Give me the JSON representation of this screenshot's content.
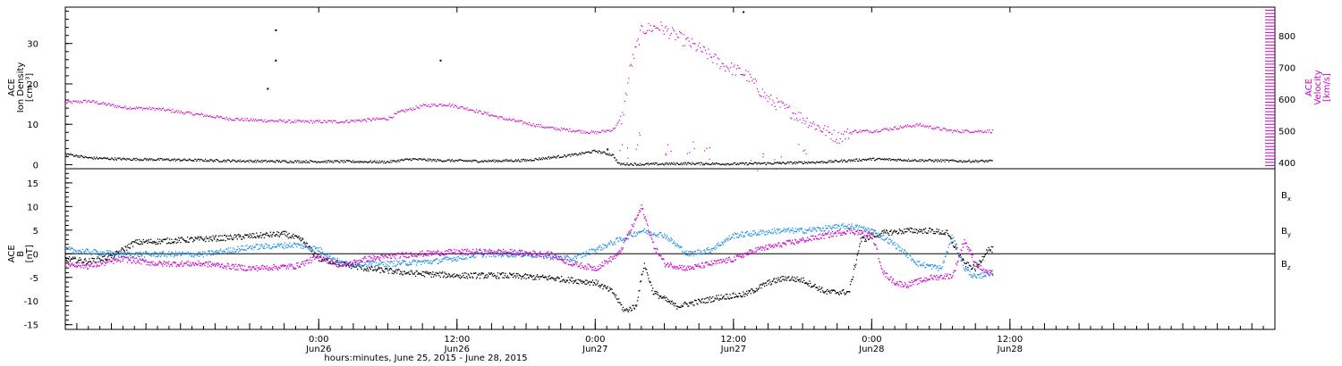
{
  "colors": {
    "black": "#000000",
    "magenta": "#cc00cc",
    "blue": "#1e8fe6",
    "background": "#ffffff"
  },
  "footer": {
    "xlabel": "hours:minutes, June 25, 2015 - June 28, 2015"
  },
  "chart_data": [
    {
      "type": "scatter",
      "panel": "top",
      "xlim_hours": [
        -22,
        83
      ],
      "x_unit": "hours since 0:00 Jun26",
      "x_ticks": [
        {
          "hours": 0,
          "time": "0:00",
          "date": "Jun26"
        },
        {
          "hours": 12,
          "time": "12:00",
          "date": "Jun26"
        },
        {
          "hours": 24,
          "time": "0:00",
          "date": "Jun27"
        },
        {
          "hours": 36,
          "time": "12:00",
          "date": "Jun27"
        },
        {
          "hours": 48,
          "time": "0:00",
          "date": "Jun28"
        },
        {
          "hours": 60,
          "time": "12:00",
          "date": "Jun28"
        }
      ],
      "left_axis": {
        "label_lines": [
          "ACE",
          "Ion Density",
          "[cm⁻³]"
        ],
        "ylim": [
          -1,
          39
        ],
        "ticks": [
          0,
          10,
          20,
          30
        ]
      },
      "right_axis": {
        "label_lines": [
          "ACE",
          "Velocity",
          "[km/s]"
        ],
        "ylim": [
          380,
          890
        ],
        "ticks": [
          400,
          500,
          600,
          700,
          800
        ],
        "color": "#cc00cc"
      },
      "series": [
        {
          "axis": "left",
          "color": "#000000",
          "points": [
            [
              -22,
              2.8
            ],
            [
              -20,
              1.8
            ],
            [
              -17,
              1.5
            ],
            [
              -14,
              1.4
            ],
            [
              -10,
              1.2
            ],
            [
              -6,
              1.0
            ],
            [
              -2,
              0.9
            ],
            [
              2,
              0.9
            ],
            [
              6,
              0.8
            ],
            [
              8,
              1.5
            ],
            [
              10,
              1.2
            ],
            [
              14,
              1.0
            ],
            [
              18,
              1.2
            ],
            [
              22,
              2.5
            ],
            [
              24,
              3.5
            ],
            [
              25.5,
              2.5
            ],
            [
              26,
              0.3
            ],
            [
              28,
              0.2
            ],
            [
              32,
              0.4
            ],
            [
              36,
              0.3
            ],
            [
              40,
              0.5
            ],
            [
              44,
              0.8
            ],
            [
              48,
              1.5
            ],
            [
              52,
              1.2
            ],
            [
              56,
              1.0
            ],
            [
              59,
              1.0
            ]
          ],
          "outliers": [
            [
              -3.8,
              33.5
            ],
            [
              -3.8,
              26
            ],
            [
              -4.5,
              19
            ],
            [
              10.5,
              26
            ],
            [
              36.8,
              38
            ],
            [
              25,
              4
            ]
          ]
        },
        {
          "axis": "right",
          "color": "#cc00cc",
          "points": [
            [
              -22,
              590
            ],
            [
              -20,
              595
            ],
            [
              -17,
              575
            ],
            [
              -14,
              570
            ],
            [
              -11,
              555
            ],
            [
              -8,
              540
            ],
            [
              -6,
              535
            ],
            [
              -2,
              530
            ],
            [
              2,
              530
            ],
            [
              6,
              540
            ],
            [
              7,
              560
            ],
            [
              9,
              580
            ],
            [
              11,
              585
            ],
            [
              13,
              570
            ],
            [
              16,
              540
            ],
            [
              20,
              510
            ],
            [
              24,
              495
            ],
            [
              25.5,
              505
            ],
            [
              26.3,
              540
            ],
            [
              27,
              700
            ],
            [
              28,
              820
            ],
            [
              29.5,
              830
            ],
            [
              31,
              800
            ],
            [
              33,
              760
            ],
            [
              35,
              710
            ],
            [
              37,
              680
            ],
            [
              39,
              600
            ],
            [
              41,
              560
            ],
            [
              43,
              520
            ],
            [
              45,
              480
            ],
            [
              46.5,
              500
            ],
            [
              48,
              500
            ],
            [
              52,
              520
            ],
            [
              55,
              500
            ],
            [
              58,
              500
            ]
          ],
          "outliers": [
            [
              26.2,
              430
            ],
            [
              27.5,
              470
            ],
            [
              30,
              450
            ],
            [
              32,
              440
            ],
            [
              34,
              430
            ],
            [
              38,
              400
            ],
            [
              40,
              410
            ],
            [
              42,
              430
            ]
          ]
        }
      ]
    },
    {
      "type": "line",
      "panel": "bottom",
      "xlim_hours": [
        -22,
        83
      ],
      "ylabel_lines": [
        "ACE",
        "B",
        "[nT]"
      ],
      "ylim": [
        -16,
        18
      ],
      "ticks": [
        -15,
        -10,
        -5,
        0,
        5,
        10,
        15
      ],
      "zero_line": true,
      "series": [
        {
          "name": "Bx",
          "color": "#000000",
          "points": [
            [
              -22,
              -1
            ],
            [
              -20,
              -1.5
            ],
            [
              -18,
              -0.5
            ],
            [
              -16,
              2.5
            ],
            [
              -12,
              3
            ],
            [
              -8,
              3.5
            ],
            [
              -5,
              4
            ],
            [
              -3,
              4.3
            ],
            [
              -1.5,
              3
            ],
            [
              0,
              -1
            ],
            [
              2,
              -2
            ],
            [
              4,
              -3
            ],
            [
              8,
              -4
            ],
            [
              12,
              -4.5
            ],
            [
              16,
              -4.5
            ],
            [
              20,
              -5
            ],
            [
              22,
              -5.5
            ],
            [
              24,
              -6
            ],
            [
              25.5,
              -8
            ],
            [
              26.5,
              -12
            ],
            [
              27.5,
              -11
            ],
            [
              28.2,
              -2
            ],
            [
              29,
              -8
            ],
            [
              31,
              -11
            ],
            [
              33,
              -10
            ],
            [
              35,
              -9
            ],
            [
              37,
              -8.5
            ],
            [
              39,
              -6
            ],
            [
              40.5,
              -5
            ],
            [
              42,
              -5.5
            ],
            [
              44,
              -8
            ],
            [
              46,
              -8
            ],
            [
              47,
              3
            ],
            [
              49,
              4.5
            ],
            [
              51,
              5
            ],
            [
              53,
              5
            ],
            [
              54.5,
              4.5
            ],
            [
              56,
              -2
            ],
            [
              57,
              -3
            ],
            [
              58,
              1
            ]
          ]
        },
        {
          "name": "By",
          "color": "#1e8fe6",
          "points": [
            [
              -22,
              1
            ],
            [
              -20,
              0.5
            ],
            [
              -17,
              0
            ],
            [
              -14,
              0
            ],
            [
              -10,
              0
            ],
            [
              -6,
              1.5
            ],
            [
              -2,
              2
            ],
            [
              0,
              1
            ],
            [
              2,
              -2
            ],
            [
              6,
              -2
            ],
            [
              10,
              -1.5
            ],
            [
              14,
              0
            ],
            [
              18,
              0
            ],
            [
              22,
              -1
            ],
            [
              24,
              1
            ],
            [
              26,
              3
            ],
            [
              28,
              5
            ],
            [
              30,
              4
            ],
            [
              32,
              0
            ],
            [
              34,
              1
            ],
            [
              36,
              4
            ],
            [
              38,
              4.5
            ],
            [
              40,
              5
            ],
            [
              42,
              5
            ],
            [
              44,
              5.5
            ],
            [
              46,
              6
            ],
            [
              48,
              5
            ],
            [
              50,
              2
            ],
            [
              52,
              -2
            ],
            [
              54,
              -3
            ],
            [
              55,
              4
            ],
            [
              56,
              -3
            ],
            [
              57,
              -5
            ],
            [
              58,
              -4
            ]
          ]
        },
        {
          "name": "Bz",
          "color": "#cc00cc",
          "points": [
            [
              -22,
              -2
            ],
            [
              -20,
              -2.5
            ],
            [
              -17,
              -1
            ],
            [
              -14,
              -2
            ],
            [
              -10,
              -2
            ],
            [
              -6,
              -3
            ],
            [
              -2,
              -2.5
            ],
            [
              0,
              -0.5
            ],
            [
              2,
              -2.5
            ],
            [
              4,
              -1
            ],
            [
              8,
              0
            ],
            [
              12,
              0.5
            ],
            [
              16,
              0.5
            ],
            [
              20,
              0
            ],
            [
              22,
              -2
            ],
            [
              24,
              -3
            ],
            [
              26,
              0
            ],
            [
              27,
              5
            ],
            [
              28,
              10
            ],
            [
              29,
              2
            ],
            [
              30,
              -2
            ],
            [
              32,
              -3
            ],
            [
              34,
              -2
            ],
            [
              36,
              -1
            ],
            [
              38,
              1
            ],
            [
              40,
              2
            ],
            [
              42,
              3
            ],
            [
              44,
              4
            ],
            [
              46,
              5
            ],
            [
              48,
              4
            ],
            [
              49,
              -4
            ],
            [
              50,
              -6
            ],
            [
              51,
              -6.5
            ],
            [
              53,
              -5
            ],
            [
              55,
              -4.5
            ],
            [
              56,
              3
            ],
            [
              57,
              -2
            ],
            [
              58,
              -4
            ]
          ]
        }
      ],
      "legend": [
        {
          "base": "B",
          "sub": "x",
          "color": "#000000"
        },
        {
          "base": "B",
          "sub": "y",
          "color": "#1e8fe6"
        },
        {
          "base": "B",
          "sub": "z",
          "color": "#cc00cc"
        }
      ]
    }
  ]
}
